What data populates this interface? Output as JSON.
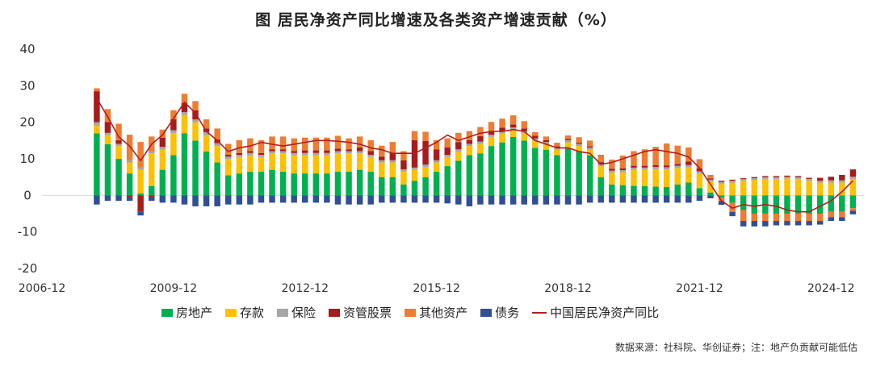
{
  "header": {
    "title": "图   居民净资产同比增速及各类资产增速贡献（%）"
  },
  "footer": {
    "source": "数据来源：社科院、华创证券；注：地产负贡献可能低估"
  },
  "legend": [
    {
      "label": "房地产",
      "color": "#00b050",
      "kind": "bar"
    },
    {
      "label": "存款",
      "color": "#ffc000",
      "kind": "bar"
    },
    {
      "label": "保险",
      "color": "#a6a6a6",
      "kind": "bar"
    },
    {
      "label": "资管股票",
      "color": "#a61c1c",
      "kind": "bar"
    },
    {
      "label": "其他资产",
      "color": "#ed7d31",
      "kind": "bar"
    },
    {
      "label": "债务",
      "color": "#2f4f96",
      "kind": "bar"
    },
    {
      "label": "中国居民净资产同比",
      "color": "#b71c1c",
      "kind": "line"
    }
  ],
  "chart_data": {
    "type": "bar",
    "stacked": true,
    "title": "居民净资产同比增速及各类资产增速贡献（%）",
    "xlabel": "",
    "ylabel": "",
    "ylim": [
      -20,
      40
    ],
    "yticks": [
      40,
      30,
      20,
      10,
      0,
      -10,
      -20
    ],
    "xticks": [
      "2006-12",
      "2009-12",
      "2012-12",
      "2015-12",
      "2018-12",
      "2021-12",
      "2024-12"
    ],
    "xrange": [
      "2006-12",
      "2025-09"
    ],
    "x_start": "2008-03",
    "x_step": "quarter",
    "x": [
      "2008-03",
      "2008-06",
      "2008-09",
      "2008-12",
      "2009-03",
      "2009-06",
      "2009-09",
      "2009-12",
      "2010-03",
      "2010-06",
      "2010-09",
      "2010-12",
      "2011-03",
      "2011-06",
      "2011-09",
      "2011-12",
      "2012-03",
      "2012-06",
      "2012-09",
      "2012-12",
      "2013-03",
      "2013-06",
      "2013-09",
      "2013-12",
      "2014-03",
      "2014-06",
      "2014-09",
      "2014-12",
      "2015-03",
      "2015-06",
      "2015-09",
      "2015-12",
      "2016-03",
      "2016-06",
      "2016-09",
      "2016-12",
      "2017-03",
      "2017-06",
      "2017-09",
      "2017-12",
      "2018-03",
      "2018-06",
      "2018-09",
      "2018-12",
      "2019-03",
      "2019-06",
      "2019-09",
      "2019-12",
      "2020-03",
      "2020-06",
      "2020-09",
      "2020-12",
      "2021-03",
      "2021-06",
      "2021-09",
      "2021-12",
      "2022-03",
      "2022-06",
      "2022-09",
      "2022-12",
      "2023-03",
      "2023-06",
      "2023-09",
      "2023-12",
      "2024-03",
      "2024-06",
      "2024-09",
      "2024-12",
      "2025-03",
      "2025-06"
    ],
    "series": [
      {
        "name": "房地产",
        "color": "#00b050",
        "values": [
          17,
          14,
          10,
          6,
          0.5,
          2.5,
          7,
          11,
          17,
          15,
          12,
          9,
          5.5,
          6,
          6.5,
          6.5,
          7,
          6.5,
          6,
          6,
          6,
          6,
          6.5,
          6.5,
          7,
          6.5,
          5,
          5,
          3,
          4,
          5,
          6.5,
          8,
          9.5,
          11,
          11.5,
          13.5,
          14.5,
          16,
          15,
          13,
          12.5,
          11,
          13,
          12,
          11,
          5,
          3,
          2.8,
          2.6,
          2.5,
          2.4,
          2.3,
          3,
          3.5,
          2,
          0.8,
          -0.6,
          -2,
          -4,
          -5,
          -5,
          -5,
          -5,
          -5,
          -5,
          -5,
          -4.5,
          -4.5,
          -3.5
        ]
      },
      {
        "name": "存款",
        "color": "#ffc000",
        "values": [
          2,
          2.5,
          3.5,
          3,
          6.5,
          9,
          5.5,
          6,
          5,
          5,
          4.5,
          4.5,
          4.5,
          4.5,
          4.5,
          4,
          4.5,
          5,
          5,
          5,
          5,
          5,
          5,
          5,
          4.5,
          4,
          4,
          4,
          3.5,
          3,
          2.8,
          2.5,
          2.5,
          2.5,
          2.5,
          2.6,
          2.5,
          2.4,
          2,
          2,
          2,
          1.5,
          1.5,
          1.5,
          1.5,
          1.5,
          3,
          3.2,
          3.5,
          4.4,
          4.5,
          4.8,
          4.8,
          4.5,
          4.2,
          4,
          3,
          3.2,
          3.5,
          4,
          4.2,
          4.5,
          4.5,
          4.6,
          4.5,
          4,
          3.5,
          3.5,
          3.5,
          4.5
        ]
      },
      {
        "name": "保险",
        "color": "#a6a6a6",
        "values": [
          1,
          0.6,
          0.6,
          0.6,
          0.6,
          0.6,
          0.8,
          0.8,
          0.8,
          0.8,
          0.8,
          0.8,
          0.6,
          0.6,
          0.6,
          0.6,
          0.6,
          0.6,
          0.6,
          0.6,
          0.6,
          0.6,
          0.6,
          0.6,
          0.6,
          0.6,
          0.6,
          0.6,
          0.6,
          0.6,
          0.6,
          0.6,
          0.6,
          0.6,
          0.6,
          0.6,
          0.6,
          0.6,
          0.6,
          0.6,
          0.6,
          0.6,
          0.6,
          0.6,
          0.6,
          0.6,
          0.6,
          0.6,
          0.6,
          0.6,
          0.6,
          0.6,
          0.6,
          0.6,
          0.6,
          0.6,
          0.5,
          0.5,
          0.5,
          0.5,
          0.5,
          0.5,
          0.5,
          0.5,
          0.5,
          0.5,
          0.5,
          0.6,
          0.6,
          0.6
        ]
      },
      {
        "name": "资管股票",
        "color": "#a61c1c",
        "values": [
          8.5,
          3,
          1,
          -0.5,
          -4.5,
          -0.5,
          2.5,
          3,
          2.5,
          2.5,
          1,
          1,
          0.5,
          0.5,
          0.5,
          0.5,
          0.5,
          0.5,
          0.5,
          0.7,
          0.7,
          0.7,
          0.7,
          0.5,
          1,
          1,
          1,
          2,
          2.5,
          7.5,
          6.5,
          3,
          2,
          2,
          1,
          1.5,
          1,
          1,
          0.8,
          0.7,
          0.7,
          0.5,
          0.3,
          0.3,
          0.3,
          0.3,
          0.5,
          0.5,
          0.5,
          0.5,
          0.5,
          0.5,
          0.5,
          0.5,
          1,
          0.8,
          0.3,
          0.3,
          0.3,
          0.2,
          0.3,
          0.3,
          0.3,
          0.3,
          0.3,
          0.3,
          0.8,
          1,
          1.5,
          2
        ]
      },
      {
        "name": "其他资产",
        "color": "#ed7d31",
        "values": [
          0.8,
          3.5,
          4.5,
          7,
          7,
          4,
          2.2,
          2.5,
          2.5,
          2.5,
          2.5,
          3,
          3,
          3.5,
          3.5,
          3.5,
          3.5,
          3.5,
          3.5,
          3.5,
          3.5,
          3.5,
          3.5,
          3,
          3,
          3,
          3,
          3,
          2.5,
          2.5,
          2.5,
          2.5,
          2.5,
          2.5,
          2.5,
          2.5,
          2.5,
          2.5,
          2.5,
          2,
          1,
          1,
          1,
          1,
          1.5,
          1.6,
          2,
          2.5,
          3.5,
          4,
          4.5,
          5,
          6,
          5,
          3.8,
          2.5,
          1,
          -1,
          -2.5,
          -3,
          -2,
          -2,
          -2,
          -2,
          -2,
          -2,
          -2,
          -1.5,
          -1.5,
          -0.7
        ]
      },
      {
        "name": "债务",
        "color": "#2f4f96",
        "values": [
          -2.5,
          -1.5,
          -1.5,
          -1,
          -1,
          -1,
          -2,
          -2,
          -2.5,
          -3,
          -3,
          -3,
          -2.5,
          -2.5,
          -2.5,
          -2,
          -2,
          -2,
          -2,
          -2,
          -2,
          -2,
          -2.5,
          -2.5,
          -2.5,
          -2.5,
          -2,
          -2,
          -2,
          -2,
          -2,
          -2,
          -2.2,
          -2.5,
          -3,
          -2.5,
          -2.5,
          -2.5,
          -2.5,
          -2.5,
          -2.5,
          -2.5,
          -2.5,
          -2.5,
          -2.5,
          -2,
          -2,
          -2,
          -2,
          -2,
          -2,
          -2,
          -2,
          -2,
          -2,
          -1.5,
          -0.8,
          -1,
          -1.2,
          -1.5,
          -1.5,
          -1.5,
          -1.2,
          -1.2,
          -1.2,
          -1.2,
          -1,
          -1,
          -1,
          -1
        ]
      },
      {
        "name": "中国居民净资产同比",
        "type": "line",
        "color": "#b71c1c",
        "values": [
          26.5,
          21.5,
          16,
          13.5,
          9.5,
          14,
          16.5,
          21,
          25.5,
          22.5,
          17.5,
          15,
          12,
          13,
          13.5,
          14.5,
          14,
          13.5,
          14,
          14.5,
          15,
          15,
          14.8,
          14.5,
          14,
          13,
          12.5,
          11.5,
          11.5,
          11.5,
          13,
          14.5,
          16.5,
          15,
          16,
          17,
          17.5,
          17.5,
          18,
          17.5,
          15,
          14,
          13,
          13,
          12,
          11.5,
          8.5,
          9,
          10,
          11,
          12,
          12.5,
          12,
          11.5,
          10.5,
          7.5,
          3,
          -1.5,
          -3.5,
          -2.5,
          -3,
          -2.5,
          -3,
          -4,
          -4.5,
          -4.5,
          -3,
          -1.5,
          1,
          4
        ]
      }
    ]
  }
}
